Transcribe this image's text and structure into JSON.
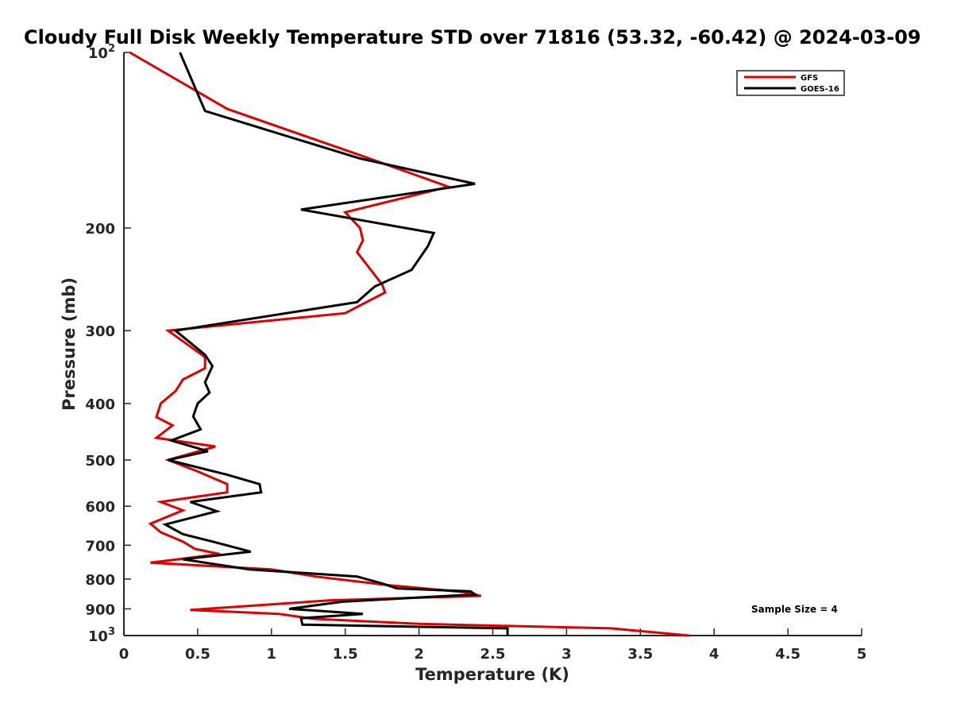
{
  "chart_data": {
    "type": "line",
    "title": "Cloudy Full Disk Weekly Temperature STD over 71816 (53.32, -60.42) @ 2024-03-09",
    "xlabel": "Temperature (K)",
    "ylabel": "Pressure (mb)",
    "xlim": [
      0,
      5
    ],
    "ylim": [
      100,
      1000
    ],
    "y_scale": "log",
    "y_reversed": true,
    "x_ticks": [
      "0",
      "0.5",
      "1",
      "1.5",
      "2",
      "2.5",
      "3",
      "3.5",
      "4",
      "4.5",
      "5"
    ],
    "y_ticks": [
      {
        "value": 100,
        "base": "10",
        "exp": "2"
      },
      {
        "value": 200,
        "label": "200"
      },
      {
        "value": 300,
        "label": "300"
      },
      {
        "value": 400,
        "label": "400"
      },
      {
        "value": 500,
        "label": "500"
      },
      {
        "value": 600,
        "label": "600"
      },
      {
        "value": 700,
        "label": "700"
      },
      {
        "value": 800,
        "label": "800"
      },
      {
        "value": 900,
        "label": "900"
      },
      {
        "value": 1000,
        "base": "10",
        "exp": "3"
      }
    ],
    "legend_position": "top-right",
    "grid": false,
    "annotation": "Sample Size = 4",
    "series": [
      {
        "name": "GFS",
        "color": "#e00000",
        "points": [
          [
            0.04,
            100
          ],
          [
            0.7,
            125
          ],
          [
            1.6,
            150
          ],
          [
            2.2,
            170
          ],
          [
            1.5,
            188
          ],
          [
            1.6,
            200
          ],
          [
            1.62,
            210
          ],
          [
            1.58,
            220
          ],
          [
            1.75,
            250
          ],
          [
            1.77,
            258
          ],
          [
            1.5,
            280
          ],
          [
            0.3,
            300
          ],
          [
            0.55,
            333
          ],
          [
            0.55,
            348
          ],
          [
            0.4,
            364
          ],
          [
            0.35,
            381
          ],
          [
            0.25,
            400
          ],
          [
            0.22,
            422
          ],
          [
            0.33,
            436
          ],
          [
            0.22,
            458
          ],
          [
            0.62,
            474
          ],
          [
            0.3,
            500
          ],
          [
            0.5,
            523
          ],
          [
            0.7,
            550
          ],
          [
            0.7,
            568
          ],
          [
            0.25,
            590
          ],
          [
            0.4,
            610
          ],
          [
            0.18,
            643
          ],
          [
            0.25,
            665
          ],
          [
            0.4,
            690
          ],
          [
            0.48,
            710
          ],
          [
            0.65,
            725
          ],
          [
            0.18,
            750
          ],
          [
            1.0,
            770
          ],
          [
            1.3,
            792
          ],
          [
            1.8,
            820
          ],
          [
            2.3,
            842
          ],
          [
            2.42,
            855
          ],
          [
            1.4,
            870
          ],
          [
            0.45,
            904
          ],
          [
            1.05,
            918
          ],
          [
            1.28,
            936
          ],
          [
            2.0,
            955
          ],
          [
            3.3,
            972
          ],
          [
            3.83,
            1000
          ]
        ]
      },
      {
        "name": "GOES-16",
        "color": "#000000",
        "points": [
          [
            0.38,
            100
          ],
          [
            0.55,
            126
          ],
          [
            1.6,
            152
          ],
          [
            2.38,
            168
          ],
          [
            1.2,
            186
          ],
          [
            2.1,
            204
          ],
          [
            2.06,
            215
          ],
          [
            1.95,
            236
          ],
          [
            1.7,
            252
          ],
          [
            1.58,
            268
          ],
          [
            0.35,
            300
          ],
          [
            0.55,
            330
          ],
          [
            0.6,
            345
          ],
          [
            0.55,
            368
          ],
          [
            0.58,
            383
          ],
          [
            0.5,
            400
          ],
          [
            0.47,
            421
          ],
          [
            0.52,
            443
          ],
          [
            0.32,
            463
          ],
          [
            0.57,
            483
          ],
          [
            0.3,
            500
          ],
          [
            0.7,
            530
          ],
          [
            0.92,
            550
          ],
          [
            0.93,
            568
          ],
          [
            0.45,
            590
          ],
          [
            0.63,
            612
          ],
          [
            0.28,
            645
          ],
          [
            0.4,
            670
          ],
          [
            0.6,
            690
          ],
          [
            0.86,
            718
          ],
          [
            0.4,
            740
          ],
          [
            0.85,
            770
          ],
          [
            1.58,
            792
          ],
          [
            1.75,
            814
          ],
          [
            1.85,
            830
          ],
          [
            2.35,
            840
          ],
          [
            2.38,
            850
          ],
          [
            1.48,
            875
          ],
          [
            1.12,
            900
          ],
          [
            1.62,
            918
          ],
          [
            1.2,
            934
          ],
          [
            1.21,
            958
          ],
          [
            2.6,
            972
          ],
          [
            2.6,
            1000
          ]
        ]
      }
    ]
  }
}
